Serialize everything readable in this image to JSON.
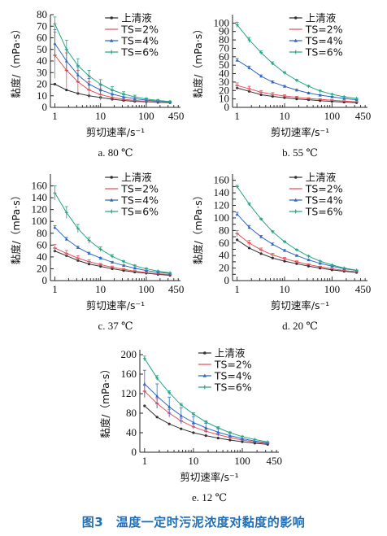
{
  "figure_caption": "图3　温度一定时污泥浓度对黏度的影响",
  "colors": {
    "上清液": "#333333",
    "TS=2%": "#e8505b",
    "TS=4%": "#2f68c8",
    "TS=6%": "#22a884"
  },
  "chart_data": [
    {
      "type": "line",
      "caption": "a. 80 ℃",
      "xlabel": "剪切速率/s⁻¹",
      "ylabel": "黏度/（mPa·s）",
      "xscale": "log",
      "xlim": [
        0.8,
        560
      ],
      "xticks": [
        1,
        10,
        100,
        450
      ],
      "ylim": [
        0,
        80
      ],
      "yticks": [
        0,
        10,
        20,
        30,
        40,
        50,
        60,
        70,
        80
      ],
      "legend_position": "top-right",
      "series": [
        {
          "name": "上清液",
          "values": [
            20,
            15,
            12,
            10,
            8.5,
            7,
            6,
            5.2,
            4.8,
            4.3,
            4
          ]
        },
        {
          "name": "TS=2%",
          "values": [
            45,
            32,
            22,
            15,
            11,
            8.5,
            7,
            6,
            5.2,
            4.6,
            4.2
          ],
          "error": [
            20,
            15,
            10,
            7,
            5,
            3,
            2,
            1.5,
            1,
            0.8,
            0.5
          ]
        },
        {
          "name": "TS=4%",
          "values": [
            55,
            40,
            28,
            20,
            15,
            11.5,
            9,
            7.5,
            6.2,
            5.3,
            4.6
          ],
          "error": [
            12,
            10,
            7,
            5,
            4,
            3,
            2,
            1.5,
            1,
            0.8,
            0.5
          ]
        },
        {
          "name": "TS=6%",
          "values": [
            72,
            50,
            36,
            27,
            20,
            15,
            11.5,
            9,
            7.2,
            6,
            5
          ],
          "error": [
            6,
            8,
            6,
            5,
            4,
            3,
            2,
            1.5,
            1,
            0.8,
            0.5
          ]
        }
      ]
    },
    {
      "type": "line",
      "caption": "b. 55 ℃",
      "xlabel": "剪切速率/s⁻¹",
      "ylabel": "黏度/（mPa·s）",
      "xscale": "log",
      "xlim": [
        0.8,
        560
      ],
      "xticks": [
        1,
        10,
        100,
        450
      ],
      "ylim": [
        0,
        110
      ],
      "yticks": [
        0,
        10,
        20,
        30,
        40,
        50,
        60,
        70,
        80,
        90,
        100
      ],
      "legend_position": "top-right",
      "series": [
        {
          "name": "上清液",
          "values": [
            23,
            19,
            15,
            13,
            11.5,
            10,
            9,
            8,
            7,
            6.3,
            5.5
          ]
        },
        {
          "name": "TS=2%",
          "values": [
            26,
            22,
            18,
            15.5,
            13.5,
            12,
            10.5,
            9.5,
            8.5,
            7.5,
            6.5
          ],
          "error": [
            3,
            3,
            2,
            2,
            1.5,
            1,
            1,
            0.8,
            0.6,
            0.5,
            0.4
          ]
        },
        {
          "name": "TS=4%",
          "values": [
            56,
            47,
            37,
            30,
            25,
            20.5,
            17,
            14.5,
            12.5,
            10.5,
            9
          ],
          "error": [
            2,
            2,
            1.5,
            1.5,
            1,
            1,
            0.8,
            0.6,
            0.5,
            0.4,
            0.3
          ]
        },
        {
          "name": "TS=6%",
          "values": [
            98,
            80,
            65,
            52,
            41,
            32,
            25,
            19.5,
            15.5,
            12.5,
            10.5
          ],
          "error": [
            3,
            3,
            2,
            2,
            1.5,
            1,
            1,
            0.8,
            0.6,
            0.5,
            0.4
          ]
        }
      ]
    },
    {
      "type": "line",
      "caption": "c. 37 ℃",
      "xlabel": "剪切速率/s⁻¹",
      "ylabel": "黏度/（mPa·s）",
      "xscale": "log",
      "xlim": [
        0.8,
        560
      ],
      "xticks": [
        1,
        10,
        100,
        450
      ],
      "ylim": [
        0,
        180
      ],
      "yticks": [
        0,
        20,
        40,
        60,
        80,
        100,
        120,
        140,
        160
      ],
      "ytick_labels": [
        "0",
        "20",
        "40",
        "60",
        "80",
        "100",
        "120",
        "140",
        "160"
      ],
      "legend_position": "top-right",
      "series": [
        {
          "name": "上清液",
          "values": [
            50,
            42,
            34,
            28,
            24,
            20,
            17,
            14.5,
            12.5,
            10.5,
            9
          ]
        },
        {
          "name": "TS=2%",
          "values": [
            55,
            46,
            38,
            32,
            27,
            22.5,
            19,
            16,
            13.5,
            11.5,
            10
          ],
          "error": [
            6,
            5,
            4,
            3,
            2,
            2,
            1.5,
            1,
            1,
            0.8,
            0.6
          ]
        },
        {
          "name": "TS=4%",
          "values": [
            90,
            70,
            56,
            46,
            38,
            31,
            25.5,
            21,
            17,
            14,
            12
          ],
          "error": [
            3,
            3,
            2,
            2,
            1.5,
            1,
            1,
            0.8,
            0.6,
            0.5,
            0.4
          ]
        },
        {
          "name": "TS=6%",
          "values": [
            148,
            115,
            88,
            68,
            53,
            41,
            32,
            25,
            20,
            16,
            13
          ],
          "error": [
            12,
            10,
            7,
            5,
            4,
            3,
            2,
            1.5,
            1,
            0.8,
            0.6
          ]
        }
      ]
    },
    {
      "type": "line",
      "caption": "d. 20 ℃",
      "xlabel": "剪切速率/s⁻¹",
      "ylabel": "黏度/（mPa·s）",
      "xscale": "log",
      "xlim": [
        0.8,
        560
      ],
      "xticks": [
        1,
        10,
        100,
        450
      ],
      "ylim": [
        0,
        170
      ],
      "yticks": [
        0,
        10,
        20,
        30,
        40,
        50,
        60,
        70,
        80,
        90,
        100,
        110,
        120,
        130,
        140,
        150,
        160
      ],
      "ytick_labels": [
        "0",
        "",
        "20",
        "",
        "40",
        "",
        "60",
        "",
        "80",
        "",
        "100",
        "",
        "120",
        "",
        "140",
        "",
        "160"
      ],
      "legend_position": "top-right",
      "series": [
        {
          "name": "上清液",
          "values": [
            65,
            52,
            43,
            36,
            31,
            27,
            23,
            20,
            17,
            15,
            13
          ]
        },
        {
          "name": "TS=2%",
          "values": [
            75,
            60,
            49,
            41,
            35,
            30,
            25.5,
            22,
            19,
            16,
            14
          ],
          "error": [
            5,
            4,
            3,
            2.5,
            2,
            1.5,
            1.2,
            1,
            0.8,
            0.6,
            0.5
          ]
        },
        {
          "name": "TS=4%",
          "values": [
            106,
            85,
            70,
            58,
            48,
            40,
            33,
            27.5,
            23,
            19,
            16
          ],
          "error": [
            3,
            3,
            2,
            2,
            1.5,
            1,
            1,
            0.8,
            0.6,
            0.5,
            0.4
          ]
        },
        {
          "name": "TS=6%",
          "values": [
            150,
            122,
            98,
            78,
            62,
            49,
            39,
            31,
            25,
            20,
            16.5
          ],
          "error": [
            2,
            2,
            1.5,
            1.5,
            1,
            1,
            0.8,
            0.6,
            0.5,
            0.4,
            0.3
          ]
        }
      ]
    },
    {
      "type": "line",
      "caption": "e. 12 ℃",
      "xlabel": "剪切速率/s⁻¹",
      "ylabel": "黏度/（mPa·s）",
      "xscale": "log",
      "xlim": [
        0.8,
        560
      ],
      "xticks": [
        1,
        10,
        100,
        450
      ],
      "ylim": [
        0,
        210
      ],
      "yticks": [
        0,
        40,
        80,
        120,
        160,
        200
      ],
      "legend_position": "top-right",
      "series": [
        {
          "name": "上清液",
          "values": [
            95,
            72,
            58,
            48,
            40,
            34,
            29,
            25,
            21.5,
            18.5,
            16
          ]
        },
        {
          "name": "TS=2%",
          "values": [
            125,
            100,
            80,
            64,
            52,
            43,
            36,
            30,
            25,
            21,
            18
          ],
          "error": [
            12,
            10,
            8,
            6,
            5,
            4,
            3,
            2.5,
            2,
            1.5,
            1
          ]
        },
        {
          "name": "TS=4%",
          "values": [
            140,
            115,
            93,
            75,
            61,
            50,
            41,
            34,
            28,
            23,
            19
          ],
          "error": [
            28,
            25,
            20,
            16,
            12,
            9,
            7,
            5,
            4,
            3,
            2
          ]
        },
        {
          "name": "TS=6%",
          "values": [
            192,
            152,
            122,
            97,
            78,
            62,
            50,
            40,
            32,
            26,
            21
          ],
          "error": [
            5,
            5,
            4,
            3,
            3,
            2,
            2,
            1.5,
            1,
            0.8,
            0.6
          ]
        }
      ]
    }
  ]
}
